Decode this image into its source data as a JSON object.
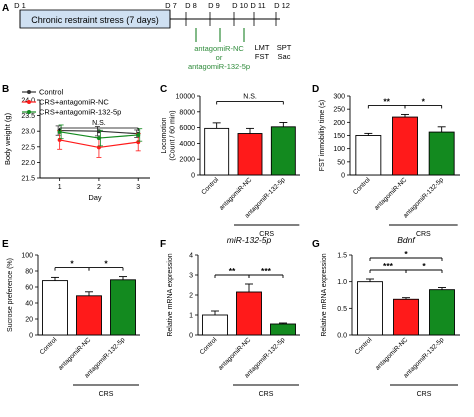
{
  "colors": {
    "control": "#ffffff",
    "crs_nc": "#ff1a1a",
    "crs_132": "#138a1f",
    "ink": "#000000",
    "timeline_bar": "#cfe0f2",
    "green_text": "#2e8b3a"
  },
  "panel_labels": [
    "A",
    "B",
    "C",
    "D",
    "E",
    "F",
    "G"
  ],
  "timeline": {
    "bar_label": "Chronic restraint stress (7 days)",
    "day_labels": [
      "D 1",
      "D 7",
      "D 8",
      "D 9",
      "D 10",
      "D 11",
      "D 12"
    ],
    "injection_lines": [
      "antagomiR-NC",
      "or",
      "antagomiR-132-5p"
    ],
    "test_left": [
      "LMT",
      "FST"
    ],
    "test_right": [
      "SPT",
      "Sac"
    ]
  },
  "chart_data": [
    {
      "panel": "B",
      "type": "line",
      "xlabel": "Day",
      "ylabel": "Body weight (g)",
      "x": [
        1,
        2,
        3
      ],
      "xlim": [
        0.5,
        3.3
      ],
      "ylim": [
        21.5,
        24.0
      ],
      "yticks": [
        "21.5",
        "22.0",
        "22.5",
        "23.0",
        "23.5",
        "24.0"
      ],
      "legend": [
        "Control",
        "CRS+antagomiR-NC",
        "CRS+antagomiR-132-5p"
      ],
      "series": [
        {
          "name": "Control",
          "values": [
            23.02,
            23.0,
            22.92
          ],
          "err": [
            0.15,
            0.15,
            0.12
          ]
        },
        {
          "name": "CRS+antagomiR-NC",
          "values": [
            22.72,
            22.48,
            22.65
          ],
          "err": [
            0.3,
            0.32,
            0.28
          ]
        },
        {
          "name": "CRS+antagomiR-132-5p",
          "values": [
            22.98,
            22.78,
            22.88
          ],
          "err": [
            0.22,
            0.25,
            0.2
          ]
        }
      ],
      "annotation": "N.S."
    },
    {
      "panel": "C",
      "type": "bar",
      "ylabel": "Locomotion\n(Count / 60 min)",
      "ylim": [
        0,
        10000
      ],
      "yticks": [
        "0",
        "2000",
        "4000",
        "6000",
        "8000",
        "10000"
      ],
      "categories": [
        "Control",
        "antagomiR-NC",
        "antagomiR-132-5p"
      ],
      "values": [
        5900,
        5250,
        6100
      ],
      "err": [
        700,
        650,
        550
      ],
      "group_label": "CRS",
      "sig": [
        {
          "from": 0,
          "to": 2,
          "label": "N.S."
        }
      ]
    },
    {
      "panel": "D",
      "type": "bar",
      "ylabel": "FST immobility time (s)",
      "ylim": [
        0,
        300
      ],
      "yticks": [
        "0",
        "50",
        "100",
        "150",
        "200",
        "250",
        "300"
      ],
      "categories": [
        "Control",
        "antagomiR-NC",
        "antagomiR-132-5p"
      ],
      "values": [
        150,
        220,
        163
      ],
      "err": [
        8,
        10,
        20
      ],
      "group_label": "CRS",
      "sig": [
        {
          "from": 0,
          "to": 1,
          "label": "**"
        },
        {
          "from": 1,
          "to": 2,
          "label": "*"
        }
      ]
    },
    {
      "panel": "E",
      "type": "bar",
      "ylabel": "Sucrose preference (%)",
      "ylim": [
        0,
        100
      ],
      "yticks": [
        "0",
        "20",
        "40",
        "60",
        "80",
        "100"
      ],
      "categories": [
        "Control",
        "antagomiR-NC",
        "antagomiR-132-5p"
      ],
      "values": [
        68,
        49,
        69
      ],
      "err": [
        4,
        5,
        4
      ],
      "group_label": "CRS",
      "sig": [
        {
          "from": 0,
          "to": 1,
          "label": "*"
        },
        {
          "from": 1,
          "to": 2,
          "label": "*"
        }
      ]
    },
    {
      "panel": "F",
      "type": "bar",
      "title": "miR-132-5p",
      "ylabel": "Relative mRNA expression",
      "ylim": [
        0,
        4
      ],
      "yticks": [
        "0",
        "1",
        "2",
        "3",
        "4"
      ],
      "categories": [
        "Control",
        "antagomiR-NC",
        "antagomiR-132-5p"
      ],
      "values": [
        1.0,
        2.15,
        0.55
      ],
      "err": [
        0.2,
        0.4,
        0.05
      ],
      "group_label": "CRS",
      "sig": [
        {
          "from": 0,
          "to": 1,
          "label": "**"
        },
        {
          "from": 1,
          "to": 2,
          "label": "***"
        }
      ]
    },
    {
      "panel": "G",
      "type": "bar",
      "title": "Bdnf",
      "ylabel": "Relative mRNA expression",
      "ylim": [
        0,
        1.5
      ],
      "yticks": [
        "0.0",
        "0.5",
        "1.0",
        "1.5"
      ],
      "categories": [
        "Control",
        "antagomiR-NC",
        "antagomiR-132-5p"
      ],
      "values": [
        1.0,
        0.67,
        0.85
      ],
      "err": [
        0.05,
        0.03,
        0.04
      ],
      "group_label": "CRS",
      "sig": [
        {
          "from": 0,
          "to": 1,
          "label": "***"
        },
        {
          "from": 1,
          "to": 2,
          "label": "*"
        },
        {
          "from": 0,
          "to": 2,
          "label": "*"
        }
      ]
    }
  ]
}
